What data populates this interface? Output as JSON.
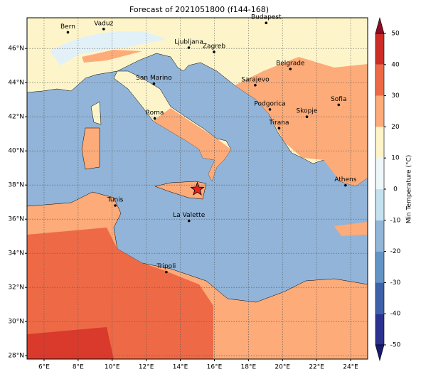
{
  "chart_data": {
    "type": "map",
    "title": "Forecast of 2021051800 (f144-168)",
    "xlim": [
      5,
      25
    ],
    "ylim": [
      27.8,
      47.8
    ],
    "xticks": [
      {
        "value": 6,
        "label": "6°E"
      },
      {
        "value": 8,
        "label": "8°E"
      },
      {
        "value": 10,
        "label": "10°E"
      },
      {
        "value": 12,
        "label": "12°E"
      },
      {
        "value": 14,
        "label": "14°E"
      },
      {
        "value": 16,
        "label": "16°E"
      },
      {
        "value": 18,
        "label": "18°E"
      },
      {
        "value": 20,
        "label": "20°E"
      },
      {
        "value": 22,
        "label": "22°E"
      },
      {
        "value": 24,
        "label": "24°E"
      }
    ],
    "yticks": [
      {
        "value": 28,
        "label": "28°N"
      },
      {
        "value": 30,
        "label": "30°N"
      },
      {
        "value": 32,
        "label": "32°N"
      },
      {
        "value": 34,
        "label": "34°N"
      },
      {
        "value": 36,
        "label": "36°N"
      },
      {
        "value": 38,
        "label": "38°N"
      },
      {
        "value": 40,
        "label": "40°N"
      },
      {
        "value": 42,
        "label": "42°N"
      },
      {
        "value": 44,
        "label": "44°N"
      },
      {
        "value": 46,
        "label": "46°N"
      }
    ],
    "grid": true,
    "cities": [
      {
        "name": "Bern",
        "lon": 7.4,
        "lat": 46.95
      },
      {
        "name": "Vaduz",
        "lon": 9.5,
        "lat": 47.14
      },
      {
        "name": "Budapest",
        "lon": 19.04,
        "lat": 47.5
      },
      {
        "name": "Ljubljana",
        "lon": 14.5,
        "lat": 46.05
      },
      {
        "name": "Zagreb",
        "lon": 15.98,
        "lat": 45.8
      },
      {
        "name": "Belgrade",
        "lon": 20.46,
        "lat": 44.8
      },
      {
        "name": "San Marino",
        "lon": 12.45,
        "lat": 43.94
      },
      {
        "name": "Sarajevo",
        "lon": 18.4,
        "lat": 43.85
      },
      {
        "name": "Sofia",
        "lon": 23.3,
        "lat": 42.7
      },
      {
        "name": "Podgorica",
        "lon": 19.26,
        "lat": 42.43
      },
      {
        "name": "Skopje",
        "lon": 21.43,
        "lat": 42.0
      },
      {
        "name": "Roma",
        "lon": 12.5,
        "lat": 41.9
      },
      {
        "name": "Tirana",
        "lon": 19.8,
        "lat": 41.33
      },
      {
        "name": "Athens",
        "lon": 23.7,
        "lat": 37.98
      },
      {
        "name": "Tunis",
        "lon": 10.18,
        "lat": 36.8
      },
      {
        "name": "La Valette",
        "lon": 14.51,
        "lat": 35.9
      },
      {
        "name": "Tripoli",
        "lon": 13.18,
        "lat": 32.9
      }
    ],
    "marker": {
      "lon": 15.0,
      "lat": 37.75,
      "color": "#e8231e"
    },
    "colorbar": {
      "label": "Min Temperature (°C)",
      "ticks": [
        -50,
        -40,
        -30,
        -20,
        -10,
        0,
        10,
        20,
        30,
        40,
        50
      ],
      "colors": [
        "#2c3290",
        "#3d62aa",
        "#6394c6",
        "#91b6d8",
        "#c4e1ef",
        "#edf7f9",
        "#fdf4c8",
        "#fcab79",
        "#ee6a46",
        "#cd2d26"
      ],
      "under_color": "#1a1a6e",
      "over_color": "#8e0c25"
    }
  }
}
